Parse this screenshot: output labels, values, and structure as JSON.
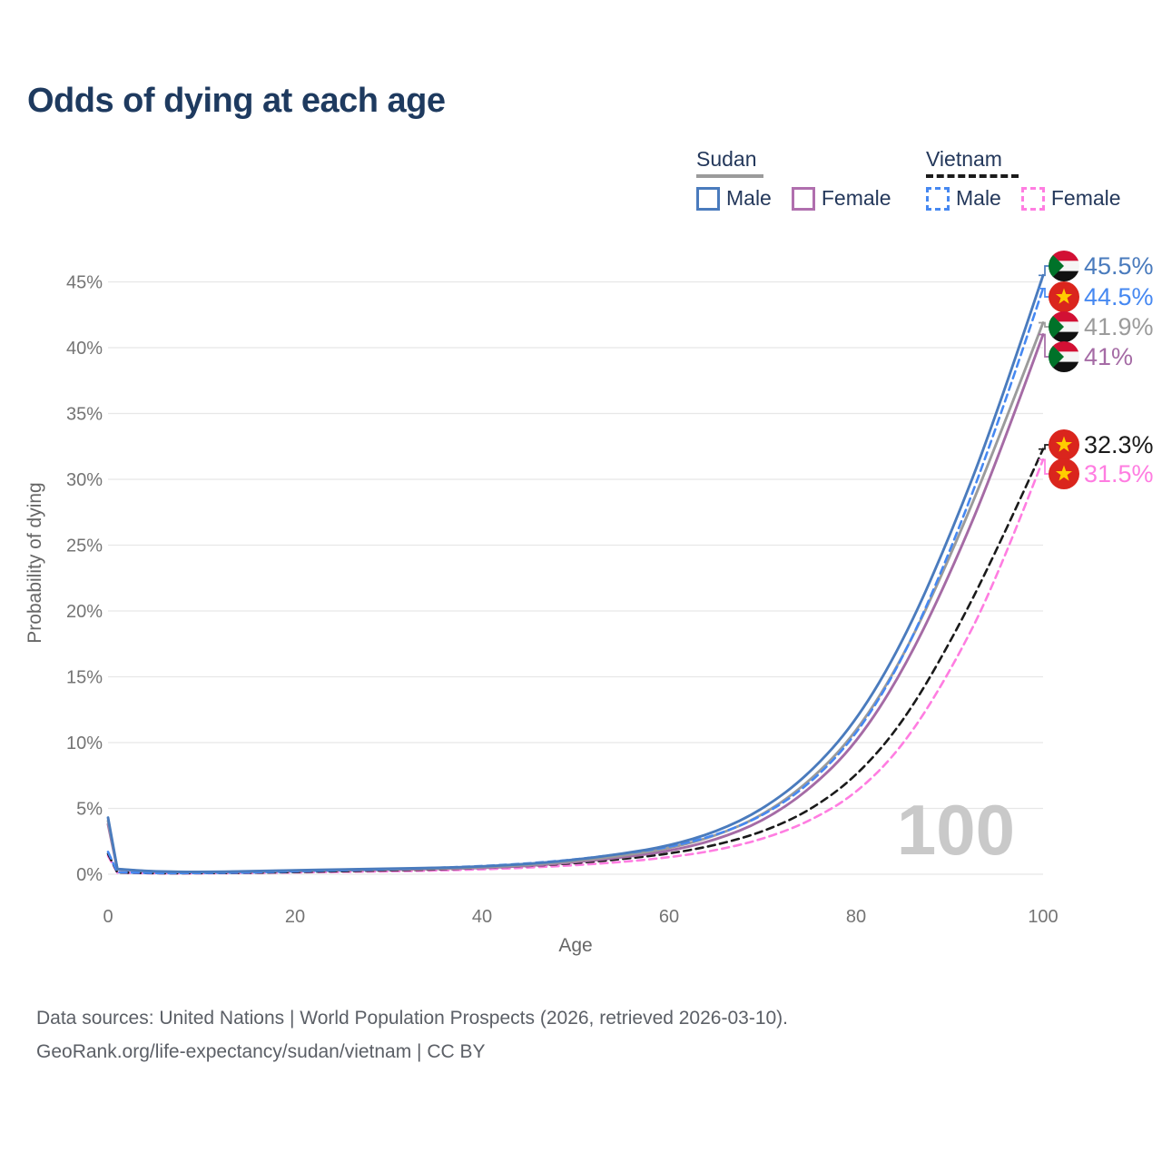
{
  "title": "Odds of dying at each age",
  "watermark_age": "100",
  "legend": {
    "groups": [
      {
        "name": "Sudan",
        "line_style": "solid",
        "line_color": "#9b9b9b",
        "items": [
          {
            "label": "Male",
            "color": "#4a7bbd",
            "dashed": false
          },
          {
            "label": "Female",
            "color": "#b06fae",
            "dashed": false
          }
        ]
      },
      {
        "name": "Vietnam",
        "line_style": "dashed",
        "line_color": "#1a1a1a",
        "items": [
          {
            "label": "Male",
            "color": "#4688f1",
            "dashed": true
          },
          {
            "label": "Female",
            "color": "#ff7de1",
            "dashed": true
          }
        ]
      }
    ]
  },
  "chart_data": {
    "type": "line",
    "title": "Odds of dying at each age",
    "xlabel": "Age",
    "ylabel": "Probability of dying",
    "x_ticks": [
      0,
      20,
      40,
      60,
      80,
      100
    ],
    "y_ticks": [
      "0%",
      "5%",
      "10%",
      "15%",
      "20%",
      "25%",
      "30%",
      "35%",
      "40%",
      "45%"
    ],
    "xlim": [
      0,
      100
    ],
    "ylim": [
      "0%",
      "47%"
    ],
    "grid": "horizontal",
    "legend_position": "top-right",
    "ages": [
      0,
      1,
      5,
      10,
      15,
      20,
      25,
      30,
      35,
      40,
      45,
      50,
      55,
      60,
      65,
      70,
      75,
      80,
      85,
      90,
      95,
      100
    ],
    "series": [
      {
        "id": "vietnam-female",
        "country": "Vietnam",
        "sex": "Female",
        "name": "Vietnam Female",
        "color": "#ff7de1",
        "dashed": true,
        "end_label": "31.5%",
        "values": [
          1.4,
          0.12,
          0.06,
          0.07,
          0.09,
          0.14,
          0.18,
          0.22,
          0.28,
          0.37,
          0.5,
          0.68,
          0.93,
          1.28,
          1.8,
          2.65,
          4.0,
          6.1,
          9.7,
          15.3,
          22.3,
          31.5
        ]
      },
      {
        "id": "vietnam-both",
        "country": "Vietnam",
        "sex": "Both",
        "name": "Vietnam",
        "color": "#1a1a1a",
        "dashed": true,
        "end_label": "32.3%",
        "values": [
          1.55,
          0.13,
          0.07,
          0.08,
          0.11,
          0.17,
          0.23,
          0.29,
          0.36,
          0.47,
          0.62,
          0.84,
          1.15,
          1.55,
          2.2,
          3.2,
          4.8,
          7.4,
          11.5,
          17.5,
          24.5,
          32.3
        ]
      },
      {
        "id": "sudan-female",
        "country": "Sudan",
        "sex": "Female",
        "name": "Sudan Female",
        "color": "#a56ba5",
        "dashed": false,
        "end_label": "41%",
        "values": [
          3.8,
          0.36,
          0.18,
          0.15,
          0.18,
          0.25,
          0.3,
          0.35,
          0.4,
          0.48,
          0.63,
          0.92,
          1.27,
          1.75,
          2.6,
          4.0,
          6.4,
          9.9,
          15.4,
          22.7,
          31.2,
          41.0
        ]
      },
      {
        "id": "sudan-both",
        "country": "Sudan",
        "sex": "Both",
        "name": "Sudan",
        "color": "#9b9b9b",
        "dashed": false,
        "end_label": "41.9%",
        "values": [
          4.05,
          0.38,
          0.19,
          0.16,
          0.2,
          0.28,
          0.33,
          0.38,
          0.44,
          0.53,
          0.7,
          1.0,
          1.4,
          1.95,
          2.9,
          4.45,
          7.0,
          10.7,
          16.4,
          24.0,
          32.6,
          41.9
        ]
      },
      {
        "id": "vietnam-male",
        "country": "Vietnam",
        "sex": "Male",
        "name": "Vietnam Male",
        "color": "#4688f1",
        "dashed": true,
        "end_label": "44.5%",
        "values": [
          1.7,
          0.15,
          0.08,
          0.09,
          0.13,
          0.22,
          0.3,
          0.38,
          0.48,
          0.62,
          0.82,
          1.12,
          1.55,
          2.05,
          2.95,
          4.4,
          6.8,
          10.5,
          16.3,
          24.4,
          33.8,
          44.5
        ]
      },
      {
        "id": "sudan-male",
        "country": "Sudan",
        "sex": "Male",
        "name": "Sudan Male",
        "color": "#4a7bbd",
        "dashed": false,
        "end_label": "45.5%",
        "values": [
          4.3,
          0.4,
          0.2,
          0.17,
          0.22,
          0.3,
          0.36,
          0.42,
          0.48,
          0.58,
          0.78,
          1.1,
          1.55,
          2.15,
          3.2,
          4.9,
          7.6,
          11.6,
          17.6,
          25.6,
          34.8,
          45.5
        ]
      }
    ]
  },
  "source": {
    "line1": "Data sources: United Nations | World Population Prospects (2026, retrieved 2026-03-10).",
    "line2": "GeoRank.org/life-expectancy/sudan/vietnam | CC BY"
  },
  "colors": {
    "title": "#1e3a5f",
    "axis_text": "#747474",
    "gridline": "#e7e7e7",
    "watermark": "#c9c9c9",
    "source_text": "#5b5f66",
    "sudan_flag_red": "#d21034",
    "sudan_flag_green": "#007229",
    "vietnam_flag_red": "#da251d",
    "vietnam_flag_yellow": "#ffcd00"
  }
}
